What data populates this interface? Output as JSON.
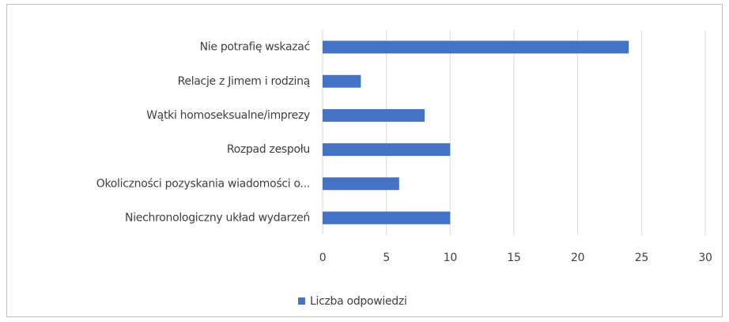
{
  "chart_data": {
    "type": "bar",
    "orientation": "horizontal",
    "categories": [
      "Nie potrafię wskazać",
      "Relacje z Jimem i rodziną",
      "Wątki homoseksualne/imprezy",
      "Rozpad zespołu",
      "Okoliczności pozyskania wiadomości o...",
      "Niechronologiczny układ wydarzeń"
    ],
    "series": [
      {
        "name": "Liczba odpowiedzi",
        "color": "#4472c4",
        "values": [
          24,
          3,
          8,
          10,
          6,
          10
        ]
      }
    ],
    "xlim": [
      0,
      30
    ],
    "xticks": [
      0,
      5,
      10,
      15,
      20,
      25,
      30
    ],
    "grid": true,
    "legend": "bottom"
  }
}
